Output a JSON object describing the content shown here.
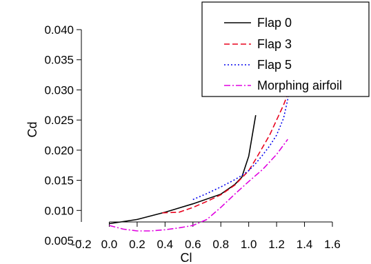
{
  "chart_data": {
    "type": "line",
    "xlabel": "Cl",
    "ylabel": "Cd",
    "xlim": [
      -0.2,
      1.6
    ],
    "ylim": [
      0.005,
      0.04
    ],
    "xticks": [
      "-0.2",
      "0.0",
      "0.2",
      "0.4",
      "0.6",
      "0.8",
      "1.0",
      "1.2",
      "1.4",
      "1.6"
    ],
    "yticks": [
      "0.005",
      "0.010",
      "0.015",
      "0.020",
      "0.025",
      "0.030",
      "0.035",
      "0.040"
    ],
    "grid": false,
    "legend_position": "top-right",
    "series": [
      {
        "name": "Flap 0",
        "color": "#000000",
        "dash": "solid",
        "x": [
          0.0,
          0.2,
          0.4,
          0.6,
          0.8,
          0.9,
          0.95,
          1.0,
          1.05
        ],
        "y": [
          0.0078,
          0.0085,
          0.0097,
          0.0111,
          0.0127,
          0.0143,
          0.0155,
          0.019,
          0.0258
        ]
      },
      {
        "name": "Flap 3",
        "color": "#e8001c",
        "dash": "dashed",
        "x": [
          0.38,
          0.5,
          0.6,
          0.7,
          0.8,
          0.9,
          1.0,
          1.05,
          1.1,
          1.15,
          1.2,
          1.25,
          1.3
        ],
        "y": [
          0.0096,
          0.0097,
          0.0105,
          0.0115,
          0.0126,
          0.0142,
          0.0166,
          0.0185,
          0.0205,
          0.0225,
          0.025,
          0.0275,
          0.0305
        ]
      },
      {
        "name": "Flap 5",
        "color": "#0000ee",
        "dash": "dotted",
        "x": [
          0.6,
          0.7,
          0.8,
          0.9,
          0.95,
          1.0,
          1.05,
          1.1,
          1.15,
          1.2,
          1.25,
          1.3
        ],
        "y": [
          0.0118,
          0.0128,
          0.0139,
          0.0151,
          0.0158,
          0.0166,
          0.0178,
          0.0192,
          0.0207,
          0.0225,
          0.0253,
          0.0305
        ]
      },
      {
        "name": "Morphing airfoil",
        "color": "#e000e0",
        "dash": "dashdot",
        "x": [
          0.0,
          0.1,
          0.2,
          0.3,
          0.4,
          0.5,
          0.6,
          0.7,
          0.8,
          0.9,
          1.0,
          1.1,
          1.2,
          1.28
        ],
        "y": [
          0.0075,
          0.0069,
          0.0066,
          0.0066,
          0.0068,
          0.0071,
          0.0075,
          0.0085,
          0.0105,
          0.0127,
          0.0148,
          0.0168,
          0.0193,
          0.0218
        ]
      }
    ]
  }
}
